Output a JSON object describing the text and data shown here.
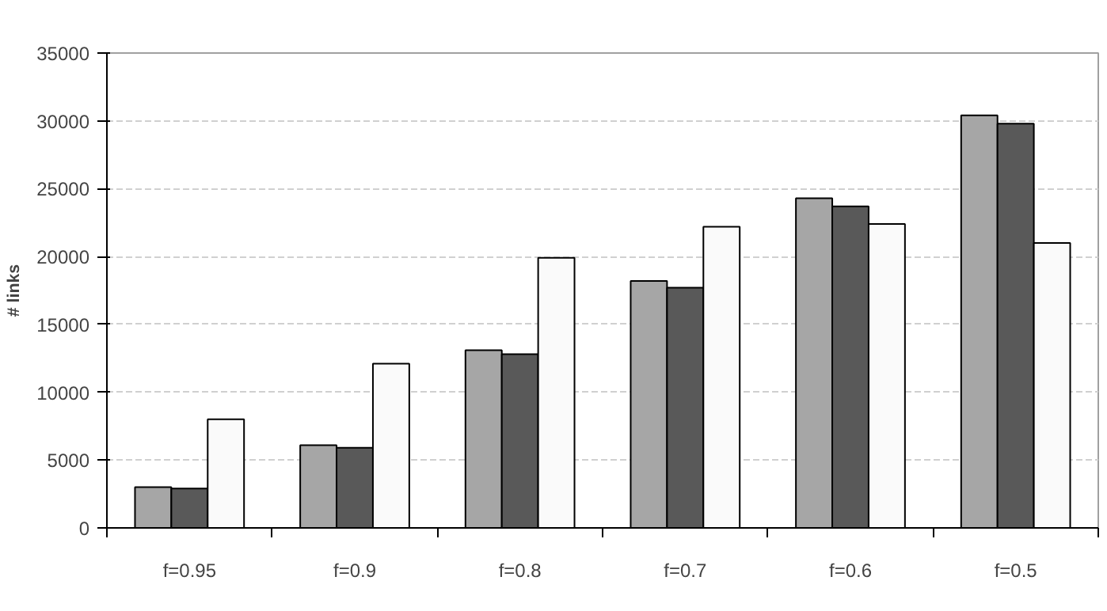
{
  "chart_data": {
    "type": "bar",
    "ylabel": "# links",
    "categories": [
      "f=0.95",
      "f=0.9",
      "f=0.8",
      "f=0.7",
      "f=0.6",
      "f=0.5"
    ],
    "series": [
      {
        "color": "#a6a6a6",
        "values": [
          3000,
          6100,
          13100,
          18200,
          24300,
          30400
        ]
      },
      {
        "color": "#595959",
        "values": [
          2900,
          5900,
          12800,
          17700,
          23700,
          29800
        ]
      },
      {
        "color": "#fafafa",
        "values": [
          8000,
          12100,
          19900,
          22200,
          22400,
          21000
        ]
      }
    ],
    "ylim": [
      0,
      35000
    ],
    "yticks": [
      0,
      5000,
      10000,
      15000,
      20000,
      25000,
      30000,
      35000
    ],
    "grid": "y"
  }
}
